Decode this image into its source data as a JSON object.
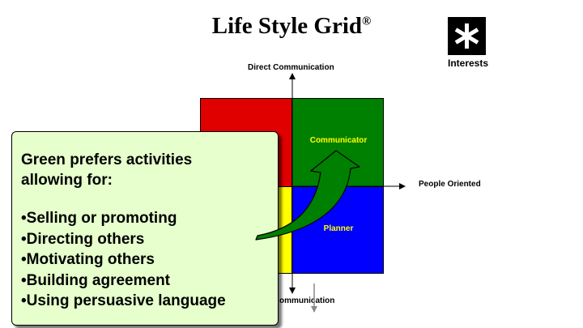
{
  "title": {
    "text": "Life Style Grid",
    "mark": "®"
  },
  "logo": {
    "icon": "asterisk-icon",
    "label": "Interests"
  },
  "axes": {
    "top": "Direct Communication",
    "right": "People Oriented",
    "bottom": "ommunication"
  },
  "quadrants": [
    {
      "id": "red",
      "color": "#e00000",
      "label": ""
    },
    {
      "id": "green",
      "color": "#008000",
      "label": "Communicator"
    },
    {
      "id": "yellow",
      "color": "#ffff00",
      "label": ""
    },
    {
      "id": "blue",
      "color": "#0000ff",
      "label": "Planner"
    }
  ],
  "callout": {
    "heading_line1": "Green prefers activities",
    "heading_line2": "allowing for:",
    "items": [
      "Selling or promoting",
      "Directing others",
      "Motivating others",
      "Building agreement",
      "Using persuasive language"
    ]
  }
}
